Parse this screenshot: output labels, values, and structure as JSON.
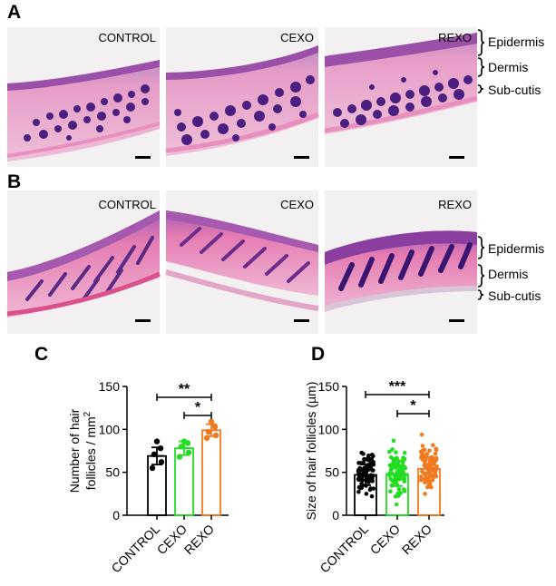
{
  "figure": {
    "panel_a": {
      "letter": "A",
      "images": [
        {
          "label": "CONTROL",
          "stain": "he-follicles-dense"
        },
        {
          "label": "CEXO",
          "stain": "he-follicles-dense"
        },
        {
          "label": "REXO",
          "stain": "he-follicles-dense"
        }
      ],
      "layer_labels": [
        "Epidermis",
        "Dermis",
        "Sub-cutis"
      ]
    },
    "panel_b": {
      "letter": "B",
      "images": [
        {
          "label": "CONTROL",
          "stain": "he-follicles-longitudinal"
        },
        {
          "label": "CEXO",
          "stain": "he-follicles-longitudinal"
        },
        {
          "label": "REXO",
          "stain": "he-follicles-longitudinal"
        }
      ],
      "layer_labels": [
        "Epidermis",
        "Dermis",
        "Sub-cutis"
      ]
    },
    "colors": {
      "tissue_pink": "#e7a2c6",
      "epidermis_purple": "#9a4fa8",
      "follicle_purple": "#4a1f80",
      "background_gray": "#f2f0f1",
      "control": "#000000",
      "cexo": "#22dd22",
      "rexo": "#f07a20"
    }
  },
  "chart_data": [
    {
      "panel": "C",
      "type": "bar",
      "categories": [
        "CONTROL",
        "CEXO",
        "REXO"
      ],
      "values": [
        69,
        78,
        99
      ],
      "errors": [
        10,
        8,
        7
      ],
      "points": [
        [
          55,
          62,
          71,
          78,
          86
        ],
        [
          68,
          73,
          80,
          84,
          86
        ],
        [
          90,
          93,
          97,
          103,
          109
        ]
      ],
      "ylabel_line1": "Number of hair",
      "ylabel_line2": "follicles / mm",
      "ylabel_sup": "2",
      "ylim": [
        0,
        150
      ],
      "yticks": [
        0,
        50,
        100,
        150
      ],
      "significance": [
        {
          "from": "CONTROL",
          "to": "REXO",
          "label": "**"
        },
        {
          "from": "CEXO",
          "to": "REXO",
          "label": "*"
        }
      ]
    },
    {
      "panel": "D",
      "type": "bar",
      "categories": [
        "CONTROL",
        "CEXO",
        "REXO"
      ],
      "values": [
        47,
        48,
        54
      ],
      "errors": [
        12,
        14,
        14
      ],
      "ylabel": "Size of hair follicles (µm)",
      "ylim": [
        0,
        150
      ],
      "yticks": [
        0,
        50,
        100,
        150
      ],
      "significance": [
        {
          "from": "CONTROL",
          "to": "REXO",
          "label": "***"
        },
        {
          "from": "CEXO",
          "to": "REXO",
          "label": "*"
        }
      ]
    }
  ]
}
